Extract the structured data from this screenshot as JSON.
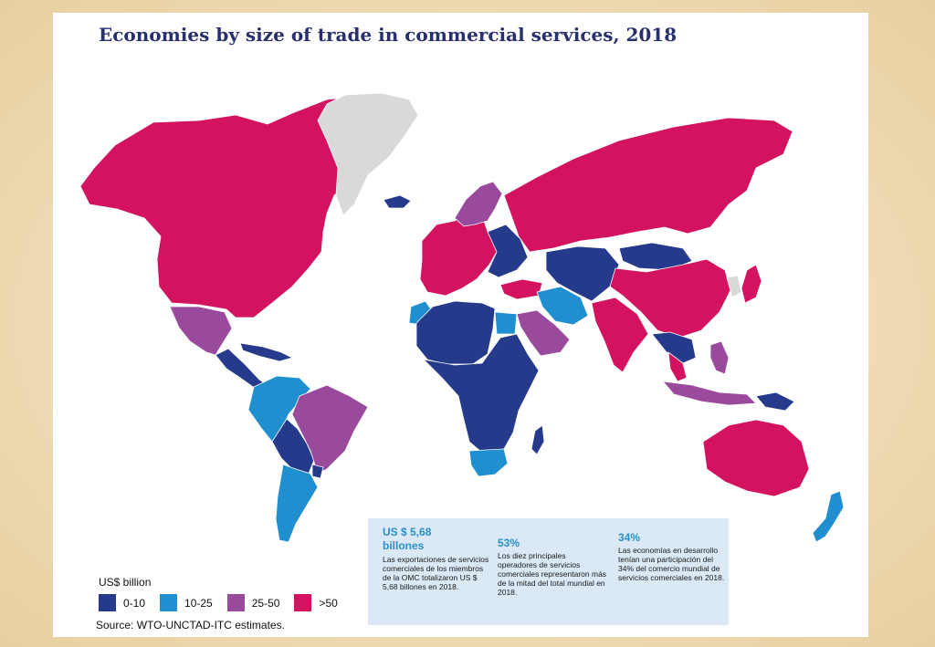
{
  "title": "Economies by size of trade in commercial services, 2018",
  "legend": {
    "title": "US$ billion",
    "items": [
      {
        "label": "0-10",
        "color": "#263a8c"
      },
      {
        "label": "10-25",
        "color": "#1f8fcf"
      },
      {
        "label": "25-50",
        "color": "#9a4a9c"
      },
      {
        "label": ">50",
        "color": "#d3135f"
      }
    ]
  },
  "source": "Source: WTO-UNCTAD-ITC estimates.",
  "no_data_color": "#d9d9d9",
  "info": [
    {
      "headline": "US $ 5,68 billones",
      "text": "Las exportaciones de servicios comerciales de los miembros de la OMC totalizaron US $ 5,68 billones en 2018."
    },
    {
      "headline": "53%",
      "text": "Los diez principales operadores de servicios comerciales representaron más de la mitad del total mundial en 2018."
    },
    {
      "headline": "34%",
      "text": "Las economías en desarrollo tenían una participación del 34% del comercio mundial de servicios comerciales en 2018."
    }
  ],
  "regions": [
    {
      "name": "north-america",
      "category": ">50"
    },
    {
      "name": "greenland",
      "category": "no-data"
    },
    {
      "name": "mexico",
      "category": "25-50"
    },
    {
      "name": "central-america",
      "category": "0-10"
    },
    {
      "name": "caribbean",
      "category": "0-10"
    },
    {
      "name": "colombia-venezuela-peru",
      "category": "10-25"
    },
    {
      "name": "ecuador-bolivia-paraguay",
      "category": "0-10"
    },
    {
      "name": "brazil",
      "category": "25-50"
    },
    {
      "name": "argentina-chile",
      "category": "10-25"
    },
    {
      "name": "uruguay",
      "category": "0-10"
    },
    {
      "name": "iceland",
      "category": "0-10"
    },
    {
      "name": "western-europe",
      "category": ">50"
    },
    {
      "name": "eastern-europe",
      "category": "0-10"
    },
    {
      "name": "scandinavia",
      "category": "25-50"
    },
    {
      "name": "russia",
      "category": ">50"
    },
    {
      "name": "turkey",
      "category": ">50"
    },
    {
      "name": "north-africa",
      "category": "0-10"
    },
    {
      "name": "morocco",
      "category": "10-25"
    },
    {
      "name": "egypt",
      "category": "10-25"
    },
    {
      "name": "sub-saharan-africa",
      "category": "0-10"
    },
    {
      "name": "south-africa",
      "category": "10-25"
    },
    {
      "name": "madagascar",
      "category": "0-10"
    },
    {
      "name": "arabia",
      "category": "25-50"
    },
    {
      "name": "iran-iraq",
      "category": "10-25"
    },
    {
      "name": "central-asia",
      "category": "0-10"
    },
    {
      "name": "india",
      "category": ">50"
    },
    {
      "name": "china",
      "category": ">50"
    },
    {
      "name": "mongolia",
      "category": "0-10"
    },
    {
      "name": "korea",
      "category": "no-data"
    },
    {
      "name": "japan",
      "category": ">50"
    },
    {
      "name": "southeast-asia",
      "category": "25-50"
    },
    {
      "name": "indochina",
      "category": "0-10"
    },
    {
      "name": "thailand",
      "category": ">50"
    },
    {
      "name": "indonesia",
      "category": "25-50"
    },
    {
      "name": "papua",
      "category": "0-10"
    },
    {
      "name": "australia",
      "category": ">50"
    },
    {
      "name": "new-zealand",
      "category": "10-25"
    }
  ]
}
